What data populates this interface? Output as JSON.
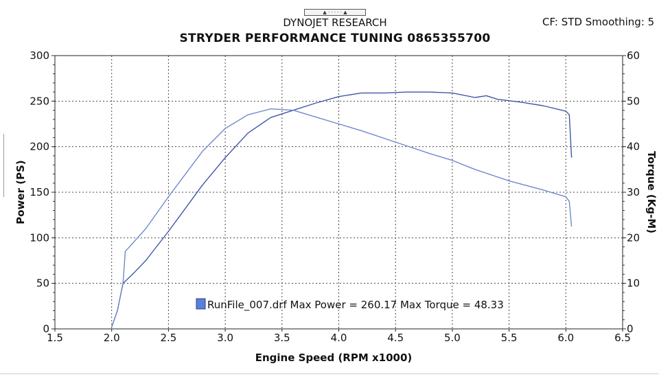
{
  "header": {
    "brand": "DYNOJET RESEARCH",
    "shop": "STRYDER PERFORMANCE TUNING 0865355700",
    "settings": "CF: STD  Smoothing: 5"
  },
  "chart_data": {
    "type": "line",
    "xlabel": "Engine Speed (RPM x1000)",
    "ylabel": "Power (PS)",
    "y2label": "Torque (Kg-M)",
    "xlim": [
      1.5,
      6.5
    ],
    "ylim": [
      0,
      300
    ],
    "y2lim": [
      0,
      60
    ],
    "x_ticks": [
      "1.5",
      "2.0",
      "2.5",
      "3.0",
      "3.5",
      "4.0",
      "4.5",
      "5.0",
      "5.5",
      "6.0",
      "6.5"
    ],
    "y_ticks": [
      "0",
      "50",
      "100",
      "150",
      "200",
      "250",
      "300"
    ],
    "y2_ticks": [
      "0",
      "10",
      "20",
      "30",
      "40",
      "50",
      "60"
    ],
    "grid": true,
    "legend": {
      "text": "RunFile_007.drf Max Power = 260.17 Max Torque = 48.33",
      "color": "#5b7fd6",
      "placement": "lower-center"
    },
    "series": [
      {
        "axis": "left",
        "color": "#3f56a8",
        "x": [
          2.0,
          2.05,
          2.1,
          2.2,
          2.3,
          2.5,
          2.8,
          3.0,
          3.2,
          3.4,
          3.6,
          3.8,
          4.0,
          4.2,
          4.4,
          4.6,
          4.8,
          5.0,
          5.2,
          5.3,
          5.4,
          5.6,
          5.8,
          6.0,
          6.03,
          6.05
        ],
        "values": [
          2,
          20,
          50,
          62,
          75,
          107,
          158,
          188,
          215,
          232,
          240,
          248,
          255,
          259,
          259,
          260,
          260,
          259,
          254,
          256,
          252,
          249,
          245,
          239,
          235,
          188
        ]
      },
      {
        "axis": "right",
        "color": "#6f88cc",
        "x": [
          2.0,
          2.05,
          2.1,
          2.12,
          2.3,
          2.5,
          2.8,
          3.0,
          3.2,
          3.4,
          3.6,
          3.8,
          4.0,
          4.2,
          4.5,
          4.8,
          5.0,
          5.2,
          5.5,
          5.8,
          6.0,
          6.03,
          6.05
        ],
        "values": [
          0.4,
          4,
          10,
          17,
          22,
          29,
          39,
          44,
          47,
          48.3,
          48,
          46.5,
          45,
          43.5,
          41,
          38.5,
          37,
          35,
          32.5,
          30.5,
          29,
          28,
          22.5
        ]
      }
    ]
  }
}
